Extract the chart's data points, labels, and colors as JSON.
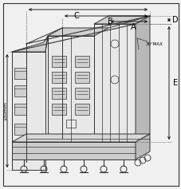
{
  "background_color": "#f0f0f0",
  "border_color": "#333333",
  "line_color": "#333333",
  "fill_light": "#e8e8e8",
  "fill_mid": "#d0d0d0",
  "fill_dark": "#b8b8b8",
  "label_A": "A",
  "label_B": "B",
  "label_C": "C",
  "label_D": "D",
  "label_E": "E",
  "label_dim": "130mm",
  "label_angle": "30°MAX",
  "fig_width": 2.28,
  "fig_height": 2.37,
  "dpi": 100
}
